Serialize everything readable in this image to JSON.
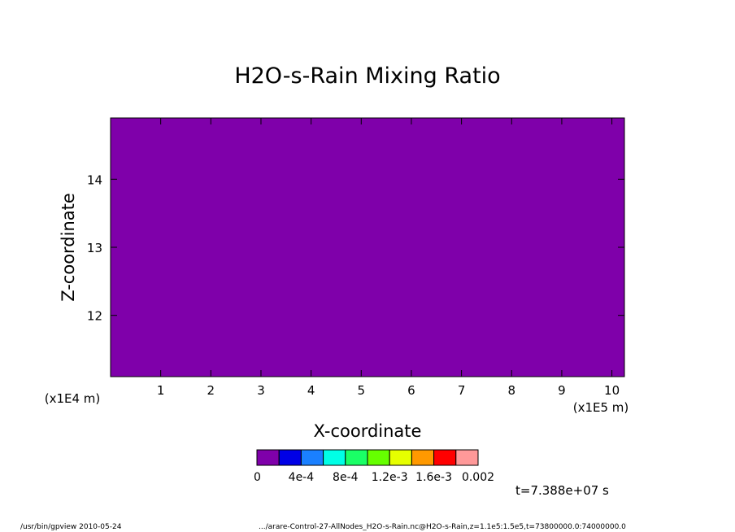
{
  "chart_data": {
    "type": "heatmap",
    "title": "H2O-s-Rain Mixing Ratio",
    "xlabel": "X-coordinate",
    "ylabel": "Z-coordinate",
    "x_unit": "(x1E5 m)",
    "y_unit": "(x1E4 m)",
    "xlim": [
      0,
      10.25
    ],
    "ylim": [
      11.1,
      14.9
    ],
    "x_ticks": [
      1,
      2,
      3,
      4,
      5,
      6,
      7,
      8,
      9,
      10
    ],
    "y_ticks": [
      12,
      13,
      14
    ],
    "field_value": 0,
    "field_color": "#7f00aa",
    "colorbar": {
      "colors": [
        "#7f00aa",
        "#0000e6",
        "#1a80ff",
        "#00ffe6",
        "#1aff66",
        "#66ff00",
        "#e6ff00",
        "#ff9900",
        "#ff0000",
        "#ff9999"
      ],
      "labels": [
        "0",
        "4e-4",
        "8e-4",
        "1.2e-3",
        "1.6e-3",
        "0.002"
      ]
    },
    "time_label": "t=7.388e+07 s"
  },
  "footer": {
    "left": "/usr/bin/gpview  2010-05-24",
    "right": ".../arare-Control-27-AllNodes_H2O-s-Rain.nc@H2O-s-Rain,z=1.1e5:1.5e5,t=73800000.0:74000000.0"
  }
}
